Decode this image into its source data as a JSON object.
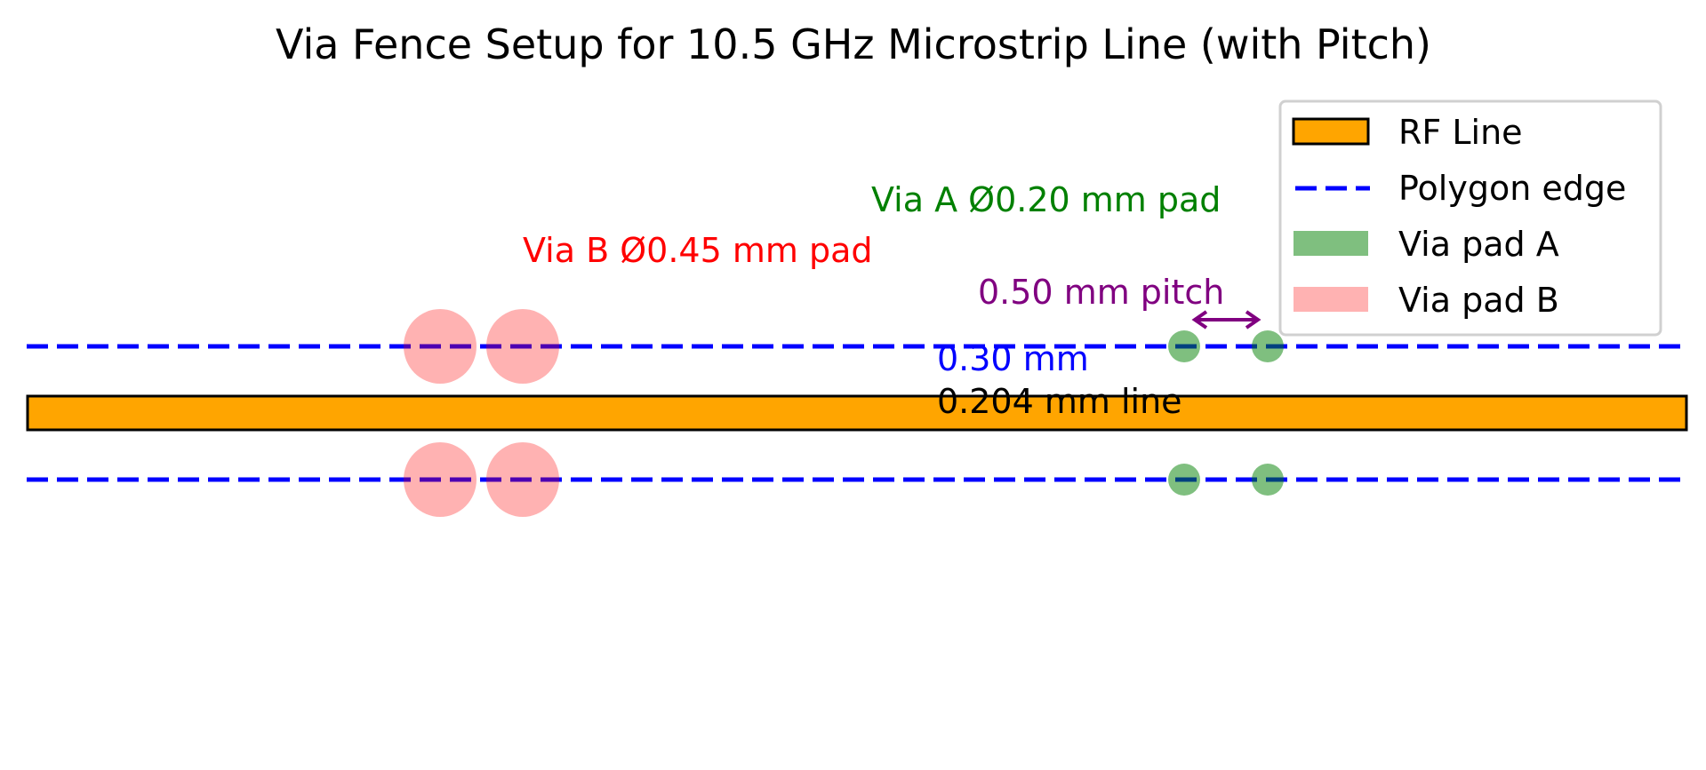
{
  "title": "Via Fence Setup for 10.5 GHz Microstrip Line (with Pitch)",
  "annotations": {
    "via_b": "Via B Ø0.45 mm pad",
    "via_a": "Via A Ø0.20 mm pad",
    "pitch": "0.50 mm pitch",
    "gap": "0.30 mm",
    "line_width": "0.204 mm line"
  },
  "legend": {
    "placement": "top-right",
    "items": [
      {
        "label": "RF Line",
        "icon": "orange-rect"
      },
      {
        "label": "Polygon edge",
        "icon": "blue-dashed-line"
      },
      {
        "label": "Via pad A",
        "icon": "green-patch"
      },
      {
        "label": "Via pad B",
        "icon": "pink-patch"
      }
    ]
  },
  "colors": {
    "rf_line": "#ffa500",
    "polygon_edge": "#0000ff",
    "via_a": "#80c080",
    "via_b": "#ffb0b0",
    "via_b_text": "#ff0000",
    "via_a_text": "#008000",
    "pitch": "#800080",
    "gap_text": "#0000ff"
  }
}
